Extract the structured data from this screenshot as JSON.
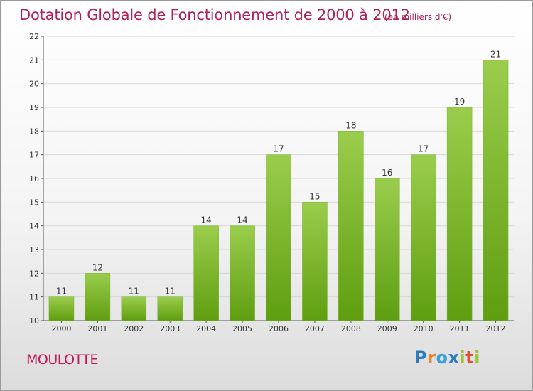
{
  "header": {
    "title": "Dotation Globale de Fonctionnement de 2000 à 2012",
    "unit": "(en milliers d'€)"
  },
  "footer": {
    "commune": "MOULOTTE",
    "logo_letters": [
      "P",
      "r",
      "o",
      "x",
      "i",
      "t",
      "i"
    ]
  },
  "colors": {
    "title": "#b0205a",
    "bar_top": "#9acd4c",
    "bar_bottom": "#5f9e10",
    "grid": "#d8d8d8"
  },
  "chart_data": {
    "type": "bar",
    "categories": [
      "2000",
      "2001",
      "2002",
      "2003",
      "2004",
      "2005",
      "2006",
      "2007",
      "2008",
      "2009",
      "2010",
      "2011",
      "2012"
    ],
    "values": [
      11,
      12,
      11,
      11,
      14,
      14,
      17,
      15,
      18,
      16,
      17,
      19,
      21
    ],
    "value_labels": [
      "11",
      "12",
      "11",
      "11",
      "14",
      "14",
      "17",
      "15",
      "18",
      "16",
      "17",
      "19",
      "21"
    ],
    "yticks": [
      "10",
      "11",
      "12",
      "13",
      "14",
      "15",
      "16",
      "17",
      "18",
      "19",
      "20",
      "21",
      "22"
    ],
    "ylim": [
      10,
      22
    ],
    "grid": true
  }
}
